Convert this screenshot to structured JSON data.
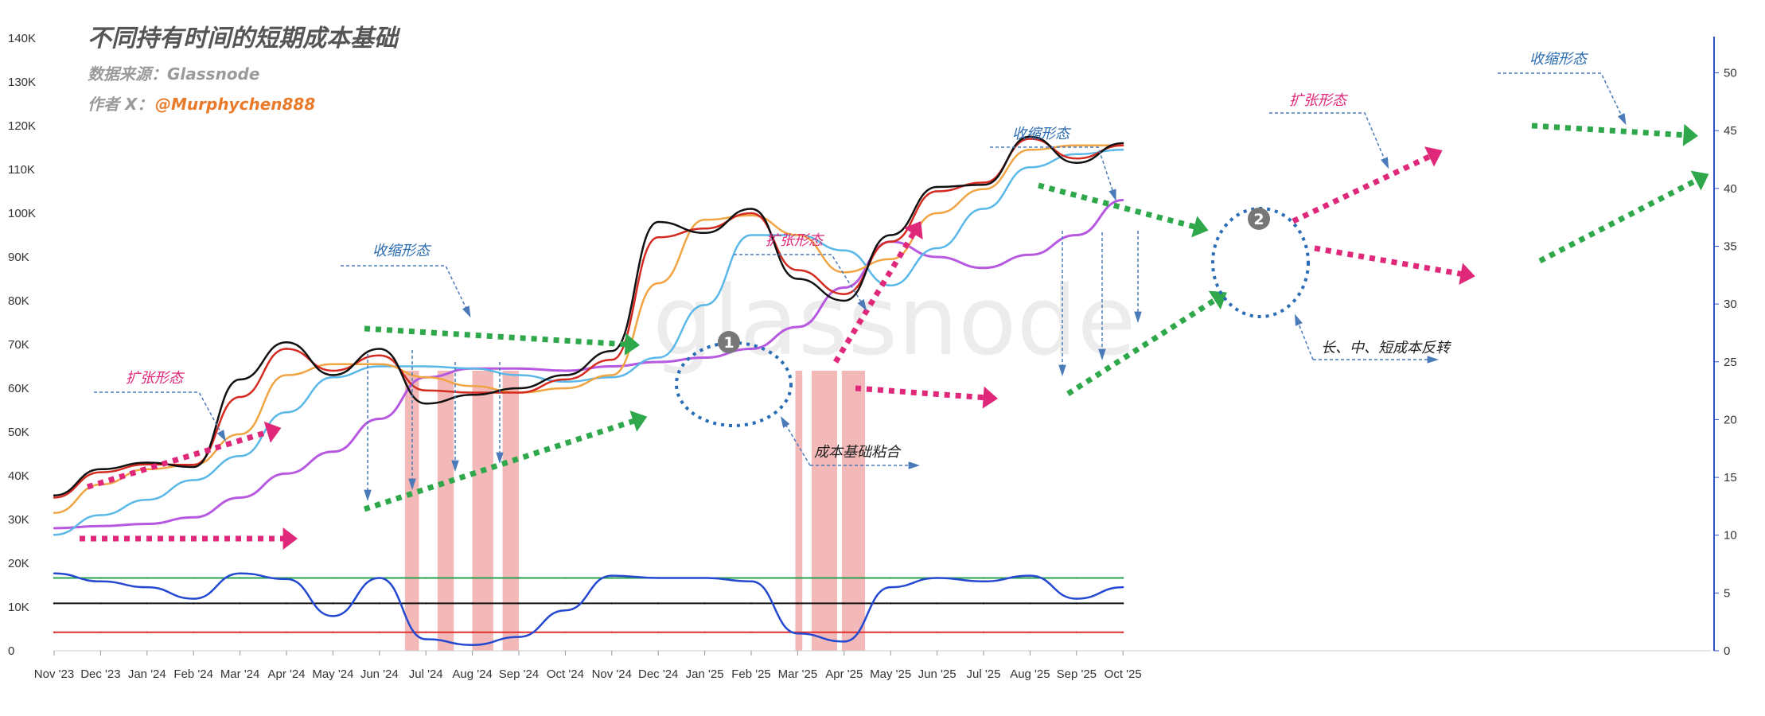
{
  "header": {
    "title": "不同持有时间的短期成本基础",
    "source": "数据来源：Glassnode",
    "author_label": "作者 X：",
    "author_handle": "@Murphychen888",
    "watermark": "glassnode"
  },
  "annotations": {
    "expansion_1": "扩张形态",
    "contraction_1": "收缩形态",
    "expansion_2": "扩张形态",
    "contraction_2": "收缩形态",
    "expansion_3": "扩张形态",
    "contraction_3": "收缩形态",
    "merge": "成本基础粘合",
    "reversal": "长、中、短成本反转",
    "badge_1": "1",
    "badge_2": "2"
  },
  "colors": {
    "price": "#111111",
    "short_sth": "#d42a20",
    "orange_sth": "#f0a442",
    "blue_sth": "#5ab8e8",
    "purple_sth": "#b659e0",
    "oscillator": "#2448d0",
    "green_level": "#28a050",
    "black_level": "#111111",
    "red_level": "#e03030",
    "shade": "#f0a8a8",
    "expansion_arrow": "#e0287a",
    "contraction_arrow": "#2ea84a",
    "right_axis": "#3050c8"
  },
  "chart_data": {
    "type": "line",
    "x_labels": [
      "Nov '23",
      "Dec '23",
      "Jan '24",
      "Feb '24",
      "Mar '24",
      "Apr '24",
      "May '24",
      "Jun '24",
      "Jul '24",
      "Aug '24",
      "Sep '24",
      "Oct '24",
      "Nov '24",
      "Dec '24",
      "Jan '25",
      "Feb '25",
      "Mar '25",
      "Apr '25",
      "May '25",
      "Jun '25",
      "Jul '25",
      "Aug '25",
      "Sep '25",
      "Oct '25"
    ],
    "y_left_ticks": [
      "0",
      "10K",
      "20K",
      "30K",
      "40K",
      "50K",
      "60K",
      "70K",
      "80K",
      "90K",
      "100K",
      "110K",
      "120K",
      "130K",
      "140K"
    ],
    "y_right_ticks": [
      "0",
      "5",
      "10",
      "15",
      "20",
      "25",
      "30",
      "35",
      "40",
      "45",
      "50"
    ],
    "ylim_left": [
      0,
      140000
    ],
    "ylim_right": [
      0,
      53
    ],
    "month_index": [
      0,
      1,
      2,
      3,
      4,
      5,
      6,
      7,
      8,
      9,
      10,
      11,
      12,
      13,
      14,
      15,
      16,
      17,
      18,
      19,
      20,
      21,
      22,
      23
    ],
    "series": [
      {
        "key": "price",
        "values": [
          35500,
          41500,
          43000,
          42000,
          62000,
          70500,
          63000,
          69000,
          56500,
          58500,
          60000,
          63000,
          68500,
          98000,
          95500,
          101000,
          85000,
          80000,
          95000,
          106000,
          106500,
          117500,
          111500,
          116000
        ]
      },
      {
        "key": "short_sth",
        "values": [
          35000,
          40800,
          42600,
          42500,
          58000,
          69000,
          64000,
          67500,
          59500,
          59000,
          59000,
          62000,
          66500,
          94500,
          96500,
          100000,
          87000,
          81500,
          93500,
          105000,
          107000,
          117000,
          112500,
          115500
        ]
      },
      {
        "key": "orange_sth",
        "values": [
          31500,
          38000,
          41500,
          42500,
          49500,
          63000,
          65500,
          65500,
          62500,
          60500,
          59000,
          60000,
          63000,
          84000,
          98500,
          99500,
          95000,
          86500,
          89500,
          100000,
          105500,
          114500,
          115500,
          115500
        ]
      },
      {
        "key": "blue_sth",
        "values": [
          26500,
          31000,
          34500,
          39000,
          44500,
          54500,
          62500,
          65000,
          65000,
          64500,
          63000,
          61500,
          62500,
          67000,
          79000,
          95000,
          95000,
          91500,
          83500,
          92000,
          101000,
          110500,
          113500,
          114500
        ]
      },
      {
        "key": "purple_sth",
        "values": [
          28000,
          28500,
          29000,
          30500,
          35000,
          40500,
          45500,
          53000,
          62500,
          64500,
          64500,
          64000,
          65000,
          66000,
          67000,
          69000,
          74000,
          83000,
          93500,
          90000,
          87500,
          90500,
          95000,
          103000
        ]
      },
      {
        "key": "oscillator",
        "values": [
          6.7,
          6.0,
          5.5,
          4.5,
          6.7,
          6.2,
          3.0,
          6.3,
          1.0,
          0.5,
          1.2,
          3.5,
          6.5,
          6.3,
          6.3,
          6.0,
          1.5,
          0.8,
          5.5,
          6.3,
          6.0,
          6.5,
          4.5,
          5.5
        ]
      },
      {
        "key": "green_level",
        "values": [
          6.3,
          6.3,
          6.3,
          6.3,
          6.3,
          6.3,
          6.3,
          6.3,
          6.3,
          6.3,
          6.3,
          6.3,
          6.3,
          6.3,
          6.3,
          6.3,
          6.3,
          6.3,
          6.3,
          6.3,
          6.3,
          6.3,
          6.3,
          6.3
        ]
      },
      {
        "key": "black_level",
        "values": [
          4.1,
          4.1,
          4.1,
          4.1,
          4.1,
          4.1,
          4.1,
          4.1,
          4.1,
          4.1,
          4.1,
          4.1,
          4.1,
          4.1,
          4.1,
          4.1,
          4.1,
          4.1,
          4.1,
          4.1,
          4.1,
          4.1,
          4.1,
          4.1
        ]
      },
      {
        "key": "red_level",
        "values": [
          1.6,
          1.6,
          1.6,
          1.6,
          1.6,
          1.6,
          1.6,
          1.6,
          1.6,
          1.6,
          1.6,
          1.6,
          1.6,
          1.6,
          1.6,
          1.6,
          1.6,
          1.6,
          1.6,
          1.6,
          1.6,
          1.6,
          1.6,
          1.6
        ]
      }
    ],
    "shaded_ranges": [
      [
        7.55,
        7.85
      ],
      [
        8.25,
        8.6
      ],
      [
        9.0,
        9.45
      ],
      [
        9.65,
        10.0
      ],
      [
        15.95,
        16.1
      ],
      [
        16.3,
        16.85
      ],
      [
        16.95,
        17.45
      ]
    ]
  }
}
